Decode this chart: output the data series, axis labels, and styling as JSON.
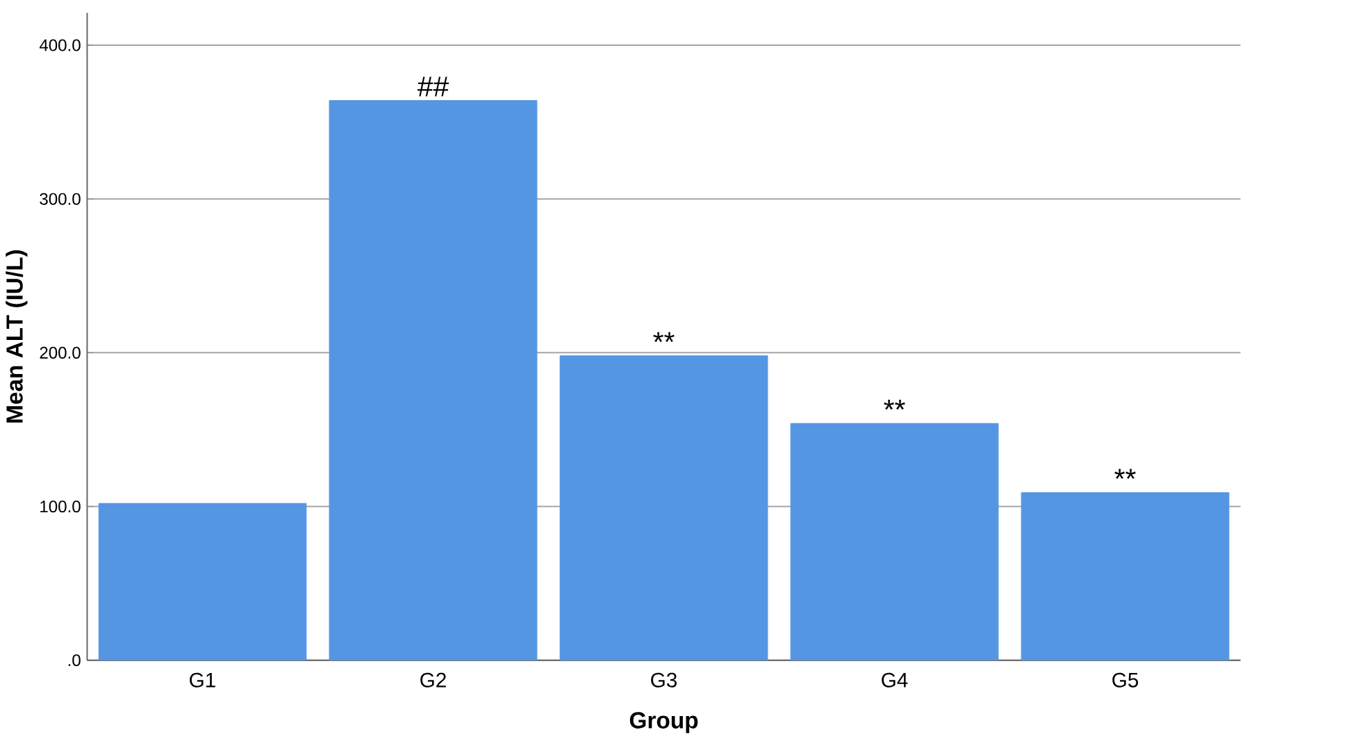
{
  "chart_data": {
    "type": "bar",
    "xlabel": "Group",
    "ylabel": "Mean ALT (IU/L)",
    "categories": [
      "G1",
      "G2",
      "G3",
      "G4",
      "G5"
    ],
    "values": [
      102,
      364,
      198,
      154,
      109
    ],
    "color": "#5596e3",
    "ylim": [
      0,
      421
    ],
    "yticks": [
      {
        "value": 0,
        "label": ".0"
      },
      {
        "value": 100,
        "label": "100.0"
      },
      {
        "value": 200,
        "label": "200.0"
      },
      {
        "value": 300,
        "label": "300.0"
      },
      {
        "value": 400,
        "label": "400.0"
      }
    ],
    "grid": "y",
    "annotations": [
      {
        "text": "##",
        "x": "G2",
        "y": 364
      },
      {
        "text": "**",
        "x": "G3",
        "y": 198
      },
      {
        "text": "**",
        "x": "G4",
        "y": 154
      },
      {
        "text": "**",
        "x": "G5",
        "y": 109
      }
    ]
  }
}
